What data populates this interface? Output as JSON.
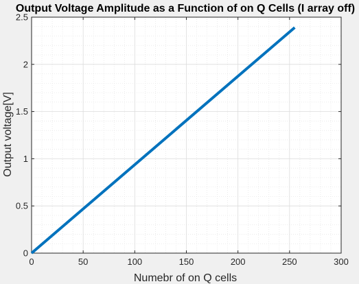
{
  "chart_data": {
    "type": "line",
    "title": "Output Voltage Amplitude as a Function of on Q Cells (I array off)",
    "xlabel": "Numebr of on Q cells",
    "ylabel": "Output voltage[V]",
    "xlim": [
      0,
      300
    ],
    "ylim": [
      0,
      2.5
    ],
    "xticks": [
      0,
      50,
      100,
      150,
      200,
      250,
      300
    ],
    "xtick_labels": [
      "0",
      "50",
      "100",
      "150",
      "200",
      "250",
      "300"
    ],
    "yticks": [
      0,
      0.5,
      1,
      1.5,
      2,
      2.5
    ],
    "ytick_labels": [
      "0",
      "0.5",
      "1",
      "1.5",
      "2",
      "2.5"
    ],
    "grid": true,
    "minor_grid": true,
    "series": [
      {
        "color": "#0072bd",
        "x": [
          0,
          255
        ],
        "y": [
          0,
          2.39
        ]
      }
    ]
  },
  "colors": {
    "figure_background": "#f0f0f0",
    "axes_background": "#ffffff",
    "line": "#0072bd"
  }
}
